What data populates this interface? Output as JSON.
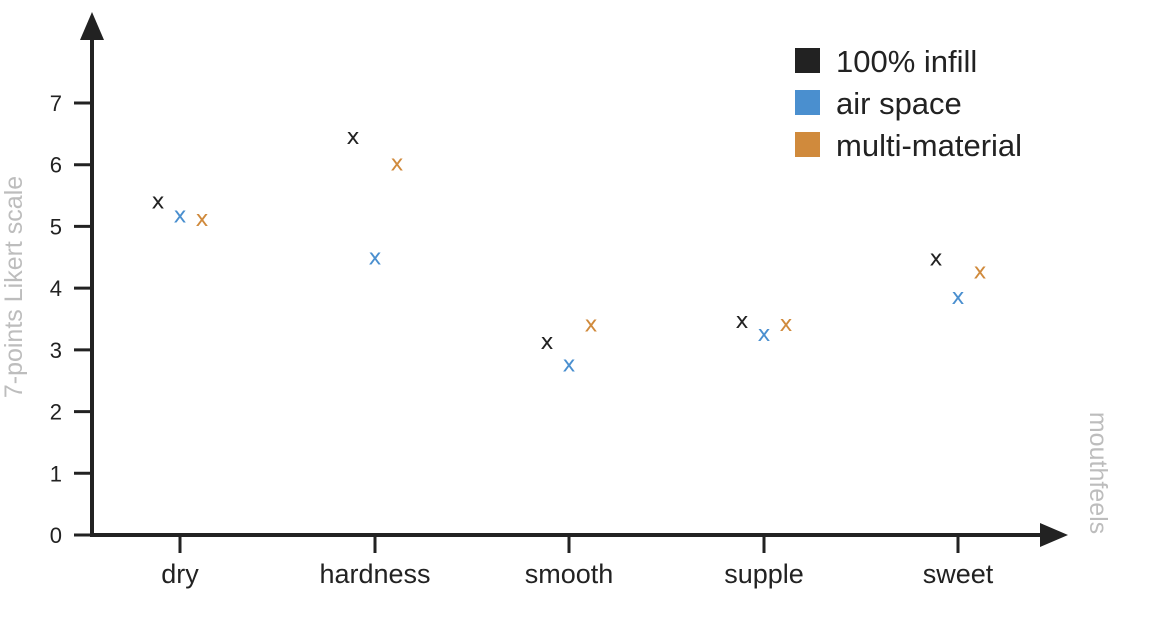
{
  "chart_data": {
    "type": "scatter",
    "categories": [
      "dry",
      "hardness",
      "smooth",
      "supple",
      "sweet"
    ],
    "series": [
      {
        "name": "100% infill",
        "color": "#222222",
        "values": [
          5.4,
          6.45,
          3.13,
          3.47,
          4.48
        ]
      },
      {
        "name": "air space",
        "color": "#4a8fcf",
        "values": [
          5.18,
          4.5,
          2.76,
          3.26,
          3.86
        ]
      },
      {
        "name": "multi-material",
        "color": "#d08a3c",
        "values": [
          5.12,
          6.02,
          3.41,
          3.42,
          4.27
        ]
      }
    ],
    "marker": "x",
    "xlabel": "mouthfeels",
    "ylabel": "7-points Likert scale",
    "ylim": [
      0,
      7
    ],
    "yticks": [
      "0",
      "1",
      "2",
      "3",
      "4",
      "5",
      "6",
      "7"
    ],
    "legend_position": "top-right",
    "grid": false
  }
}
